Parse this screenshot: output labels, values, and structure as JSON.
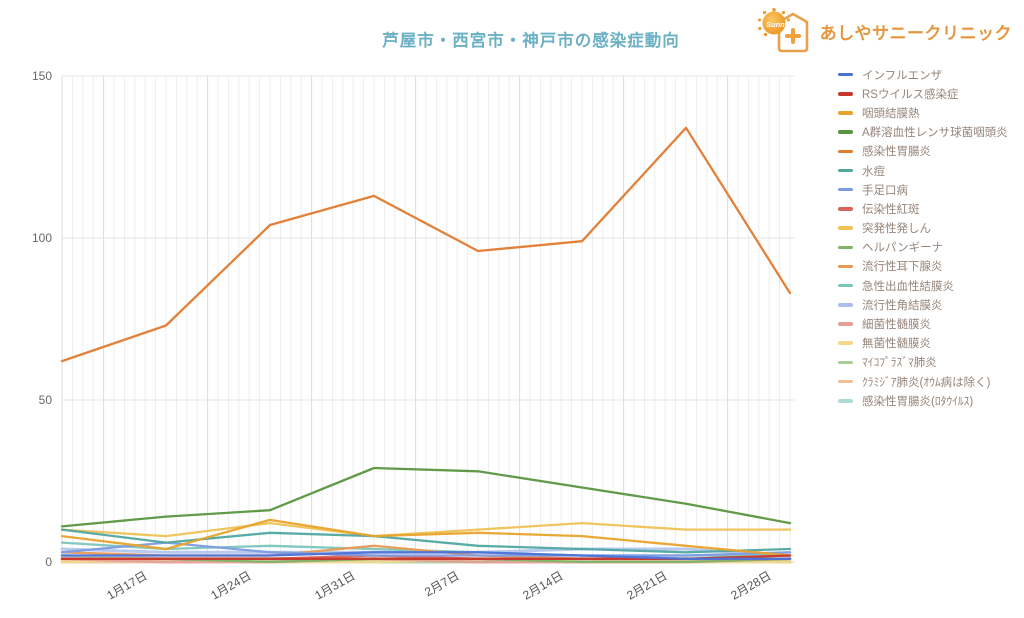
{
  "logo": {
    "clinic_name": "あしやサニークリニック",
    "sun_text": "Sunny",
    "accent_color": "#e6973e"
  },
  "chart_data": {
    "type": "line",
    "title": "芦屋市・西宮市・神戸市の感染症動向",
    "title_color": "#6bb0c4",
    "x_labels_visible": [
      "1月17日",
      "1月24日",
      "1月31日",
      "2月7日",
      "2月14日",
      "2月21日",
      "2月28日"
    ],
    "num_points": 8,
    "first_point_unlabeled": true,
    "ylim": [
      0,
      150
    ],
    "y_ticks": [
      0,
      50,
      100,
      150
    ],
    "grid": true,
    "legend_position": "right",
    "series": [
      {
        "name": "インフルエンザ",
        "color": "#4c72d9",
        "values": [
          2,
          2,
          2,
          3,
          3,
          2,
          1,
          1
        ]
      },
      {
        "name": "RSウイルス感染症",
        "color": "#c8372d",
        "values": [
          1,
          1,
          1,
          1,
          1,
          1,
          1,
          2
        ]
      },
      {
        "name": "咽頭結膜熱",
        "color": "#e8a32c",
        "values": [
          8,
          4,
          13,
          8,
          9,
          8,
          5,
          2
        ]
      },
      {
        "name": "A群溶血性レンサ球菌咽頭炎",
        "color": "#59953f",
        "values": [
          11,
          14,
          16,
          29,
          28,
          23,
          18,
          12
        ]
      },
      {
        "name": "感染性胃腸炎",
        "color": "#e07b2f",
        "values": [
          62,
          73,
          104,
          113,
          96,
          99,
          134,
          83
        ]
      },
      {
        "name": "水痘",
        "color": "#4fa8a0",
        "values": [
          10,
          6,
          9,
          8,
          5,
          4,
          3,
          4
        ]
      },
      {
        "name": "手足口病",
        "color": "#7d9be3",
        "values": [
          3,
          6,
          3,
          2,
          2,
          2,
          2,
          3
        ]
      },
      {
        "name": "伝染性紅斑",
        "color": "#d96459",
        "values": [
          1,
          1,
          1,
          2,
          1,
          1,
          1,
          1
        ]
      },
      {
        "name": "突発性発しん",
        "color": "#eec254",
        "values": [
          10,
          8,
          12,
          8,
          10,
          12,
          10,
          10
        ]
      },
      {
        "name": "ヘルパンギーナ",
        "color": "#7fb368",
        "values": [
          1,
          1,
          0,
          1,
          1,
          0,
          0,
          1
        ]
      },
      {
        "name": "流行性耳下腺炎",
        "color": "#e89a55",
        "values": [
          3,
          2,
          2,
          5,
          2,
          1,
          1,
          2
        ]
      },
      {
        "name": "急性出血性結膜炎",
        "color": "#7cc5bd",
        "values": [
          6,
          4,
          5,
          4,
          3,
          2,
          2,
          2
        ]
      },
      {
        "name": "流行性角結膜炎",
        "color": "#aabfec",
        "values": [
          4,
          3,
          3,
          3,
          3,
          4,
          4,
          2
        ]
      },
      {
        "name": "細菌性髄膜炎",
        "color": "#e39e97",
        "values": [
          1,
          0,
          0,
          1,
          0,
          0,
          0,
          1
        ]
      },
      {
        "name": "無菌性髄膜炎",
        "color": "#f3d98b",
        "values": [
          0,
          1,
          0,
          0,
          1,
          0,
          0,
          0
        ]
      },
      {
        "name": "ﾏｲｺﾌﾟﾗｽﾞﾏ肺炎",
        "color": "#a8cd97",
        "values": [
          1,
          1,
          1,
          0,
          0,
          1,
          1,
          0
        ]
      },
      {
        "name": "ｸﾗﾐｼﾞｱ肺炎(ｵｳﾑ病は除く)",
        "color": "#eec09a",
        "values": [
          0,
          0,
          1,
          1,
          0,
          0,
          1,
          0
        ]
      },
      {
        "name": "感染性胃腸炎(ﾛﾀｳｲﾙｽ)",
        "color": "#aedbd5",
        "values": [
          2,
          1,
          1,
          1,
          1,
          1,
          1,
          1
        ]
      }
    ]
  }
}
